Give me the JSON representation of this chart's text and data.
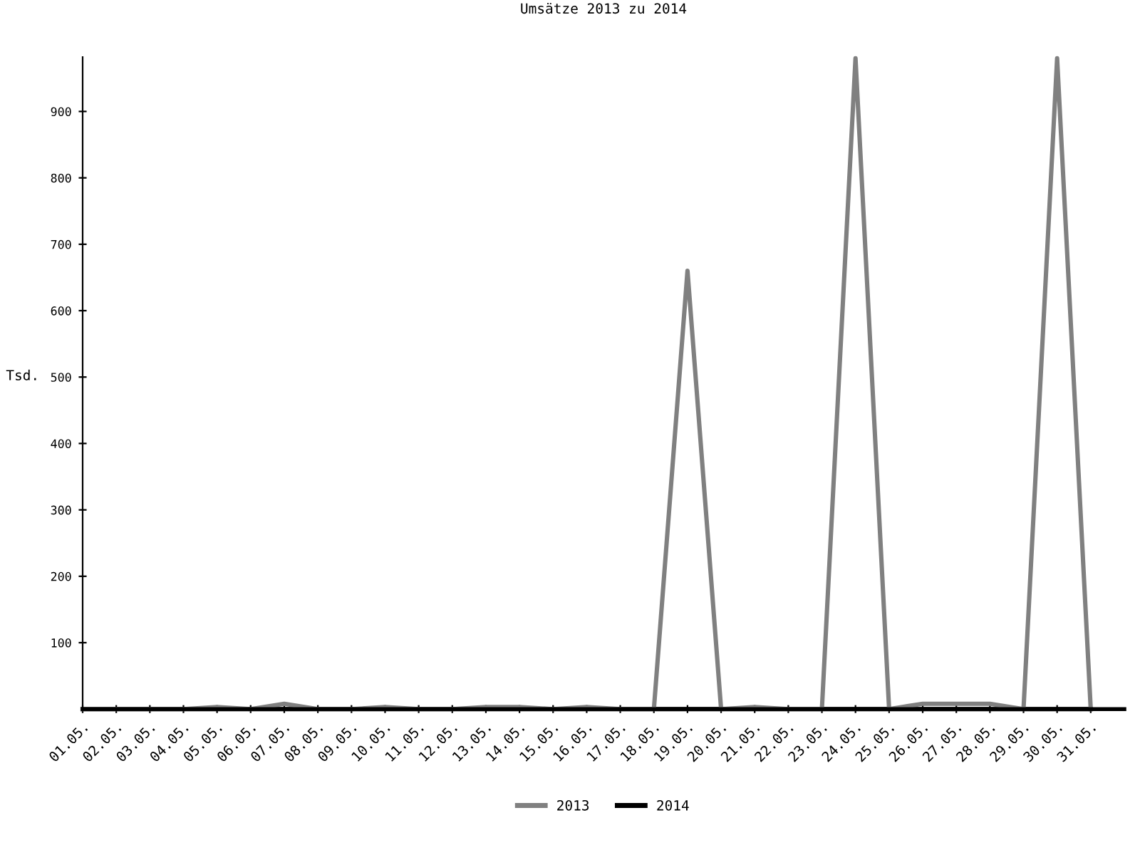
{
  "chart_data": {
    "type": "line",
    "title": "Umsätze 2013 zu 2014",
    "ylabel": "Tsd.",
    "categories": [
      "01.05.",
      "02.05.",
      "03.05.",
      "04.05.",
      "05.05.",
      "06.05.",
      "07.05.",
      "08.05.",
      "09.05.",
      "10.05.",
      "11.05.",
      "12.05.",
      "13.05.",
      "14.05.",
      "15.05.",
      "16.05.",
      "17.05.",
      "18.05.",
      "19.05.",
      "20.05.",
      "21.05.",
      "22.05.",
      "23.05.",
      "24.05.",
      "25.05.",
      "26.05.",
      "27.05.",
      "28.05.",
      "29.05.",
      "30.05.",
      "31.05."
    ],
    "series": [
      {
        "name": "2013",
        "color": "#808080",
        "values": [
          0,
          0,
          0,
          0,
          3,
          0,
          8,
          0,
          0,
          3,
          0,
          0,
          3,
          3,
          0,
          3,
          0,
          0,
          660,
          0,
          3,
          0,
          0,
          980,
          0,
          8,
          8,
          8,
          0,
          980,
          0
        ]
      },
      {
        "name": "2014",
        "color": "#000000",
        "values": [
          0,
          0,
          0,
          0,
          0,
          0,
          0,
          0,
          0,
          0,
          0,
          0,
          0,
          0,
          0,
          0,
          0,
          0,
          0,
          0,
          0,
          0,
          0,
          0,
          0,
          0,
          0,
          0,
          0,
          0,
          0
        ]
      }
    ],
    "ylim": [
      0,
      982
    ],
    "yticks": [
      100,
      200,
      300,
      400,
      500,
      600,
      700,
      800,
      900
    ],
    "grid": false,
    "legend": "bottom",
    "marker": "none",
    "line_style": "solid"
  }
}
